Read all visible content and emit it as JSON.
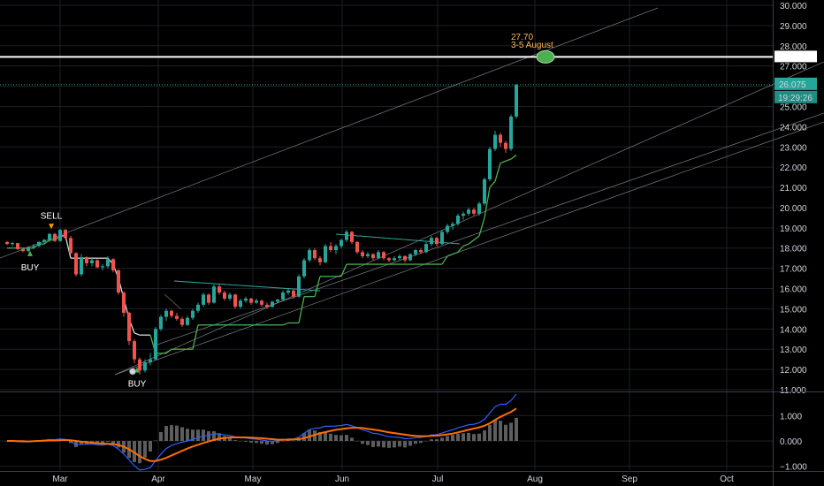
{
  "chart_data": [
    {
      "type": "candlestick",
      "title": "",
      "xlabel": "",
      "ylabel": "",
      "ylim": [
        11,
        30
      ],
      "y_ticks": [
        "30.000",
        "29.000",
        "28.000",
        "27.000",
        "26.000",
        "25.000",
        "24.000",
        "23.000",
        "22.000",
        "21.000",
        "20.000",
        "19.000",
        "18.000",
        "17.000",
        "16.000",
        "15.000",
        "14.000",
        "13.000",
        "12.000",
        "11.000"
      ],
      "x_ticks": [
        "Mar",
        "Apr",
        "May",
        "Jun",
        "Jul",
        "Aug",
        "Sep",
        "Oct"
      ],
      "grid": true,
      "last_price": "26.075",
      "countdown": "19:29:26",
      "horizontal_level": 27.45,
      "target": {
        "price_label": "27.70",
        "date_label": "3-5 August",
        "value": 27.45
      },
      "signals": [
        {
          "label": "SELL",
          "price": 18.85
        },
        {
          "label": "BUY",
          "price": 17.95
        },
        {
          "label": "BUY",
          "price": 12.2
        }
      ],
      "colors": {
        "up": "#26a69a",
        "down": "#ef5350",
        "trail": "#4caf50",
        "trail_bear": "#d8d8d8",
        "level": "#ffffff",
        "last_price_tag": "#26a69a"
      },
      "candles": [
        [
          18.3,
          18.35,
          18.15,
          18.2
        ],
        [
          18.2,
          18.3,
          18.1,
          18.25
        ],
        [
          18.25,
          18.25,
          17.9,
          17.95
        ],
        [
          17.95,
          18.0,
          17.8,
          17.85
        ],
        [
          17.85,
          18.1,
          17.8,
          18.05
        ],
        [
          18.05,
          18.2,
          17.95,
          18.1
        ],
        [
          18.1,
          18.35,
          18.05,
          18.3
        ],
        [
          18.3,
          18.45,
          18.2,
          18.4
        ],
        [
          18.4,
          18.75,
          18.3,
          18.7
        ],
        [
          18.7,
          18.75,
          18.3,
          18.35
        ],
        [
          18.35,
          18.95,
          18.3,
          18.9
        ],
        [
          18.9,
          18.95,
          18.45,
          18.5
        ],
        [
          18.5,
          18.6,
          17.7,
          17.75
        ],
        [
          17.75,
          17.8,
          16.6,
          16.7
        ],
        [
          16.7,
          17.7,
          16.6,
          17.55
        ],
        [
          17.55,
          17.6,
          17.1,
          17.25
        ],
        [
          17.25,
          17.5,
          17.1,
          17.4
        ],
        [
          17.4,
          17.45,
          17.0,
          17.05
        ],
        [
          17.05,
          17.2,
          16.9,
          17.1
        ],
        [
          17.1,
          17.6,
          17.0,
          17.45
        ],
        [
          17.45,
          17.5,
          16.8,
          16.9
        ],
        [
          16.9,
          16.95,
          15.7,
          15.8
        ],
        [
          15.8,
          15.85,
          14.6,
          14.8
        ],
        [
          14.8,
          14.85,
          13.2,
          13.4
        ],
        [
          13.4,
          13.5,
          12.3,
          12.5
        ],
        [
          12.5,
          12.6,
          11.75,
          11.95
        ],
        [
          11.95,
          12.5,
          11.85,
          12.35
        ],
        [
          12.35,
          12.8,
          12.2,
          12.5
        ],
        [
          12.5,
          14.1,
          12.45,
          14.0
        ],
        [
          14.0,
          14.7,
          13.9,
          14.6
        ],
        [
          14.6,
          15.0,
          14.4,
          14.9
        ],
        [
          14.9,
          14.95,
          14.55,
          14.65
        ],
        [
          14.65,
          14.8,
          14.4,
          14.5
        ],
        [
          14.5,
          14.6,
          14.1,
          14.2
        ],
        [
          14.2,
          14.65,
          14.15,
          14.55
        ],
        [
          14.55,
          15.0,
          14.45,
          14.9
        ],
        [
          14.9,
          15.3,
          14.8,
          15.2
        ],
        [
          15.2,
          15.8,
          15.1,
          15.7
        ],
        [
          15.7,
          15.75,
          15.2,
          15.3
        ],
        [
          15.3,
          16.2,
          15.25,
          16.1
        ],
        [
          16.1,
          16.2,
          15.7,
          15.8
        ],
        [
          15.8,
          15.9,
          15.4,
          15.5
        ],
        [
          15.5,
          15.8,
          15.4,
          15.7
        ],
        [
          15.7,
          15.75,
          15.0,
          15.1
        ],
        [
          15.1,
          15.5,
          15.0,
          15.4
        ],
        [
          15.4,
          15.6,
          15.3,
          15.5
        ],
        [
          15.5,
          15.55,
          15.2,
          15.3
        ],
        [
          15.3,
          15.5,
          15.25,
          15.4
        ],
        [
          15.4,
          15.45,
          15.1,
          15.2
        ],
        [
          15.2,
          15.3,
          15.0,
          15.1
        ],
        [
          15.1,
          15.4,
          15.05,
          15.35
        ],
        [
          15.35,
          15.5,
          15.3,
          15.45
        ],
        [
          15.45,
          15.9,
          15.4,
          15.8
        ],
        [
          15.8,
          16.0,
          15.7,
          15.9
        ],
        [
          15.9,
          15.95,
          15.5,
          15.6
        ],
        [
          15.6,
          16.7,
          15.55,
          16.6
        ],
        [
          16.6,
          17.5,
          16.5,
          17.4
        ],
        [
          17.4,
          18.0,
          17.3,
          17.9
        ],
        [
          17.9,
          18.0,
          17.4,
          17.5
        ],
        [
          17.5,
          17.6,
          17.15,
          17.3
        ],
        [
          17.3,
          18.2,
          17.25,
          18.1
        ],
        [
          18.1,
          18.3,
          17.8,
          17.9
        ],
        [
          17.9,
          18.2,
          17.7,
          18.1
        ],
        [
          18.1,
          18.45,
          18.0,
          18.4
        ],
        [
          18.4,
          18.9,
          18.3,
          18.8
        ],
        [
          18.8,
          18.85,
          18.2,
          18.3
        ],
        [
          18.3,
          18.35,
          17.7,
          17.8
        ],
        [
          17.8,
          17.9,
          17.5,
          17.6
        ],
        [
          17.6,
          17.8,
          17.5,
          17.7
        ],
        [
          17.7,
          17.75,
          17.4,
          17.5
        ],
        [
          17.5,
          17.9,
          17.45,
          17.8
        ],
        [
          17.8,
          17.85,
          17.4,
          17.5
        ],
        [
          17.5,
          17.55,
          17.3,
          17.4
        ],
        [
          17.4,
          17.6,
          17.35,
          17.5
        ],
        [
          17.5,
          17.7,
          17.4,
          17.6
        ],
        [
          17.6,
          17.65,
          17.3,
          17.4
        ],
        [
          17.4,
          17.75,
          17.35,
          17.7
        ],
        [
          17.7,
          17.95,
          17.6,
          17.9
        ],
        [
          17.9,
          18.0,
          17.7,
          17.8
        ],
        [
          17.8,
          18.3,
          17.75,
          18.2
        ],
        [
          18.2,
          18.6,
          18.1,
          18.5
        ],
        [
          18.5,
          18.55,
          18.1,
          18.2
        ],
        [
          18.2,
          18.9,
          18.15,
          18.8
        ],
        [
          18.8,
          19.2,
          18.7,
          19.1
        ],
        [
          19.1,
          19.3,
          18.9,
          19.2
        ],
        [
          19.2,
          19.7,
          19.1,
          19.6
        ],
        [
          19.6,
          19.8,
          19.4,
          19.7
        ],
        [
          19.7,
          20.0,
          19.6,
          19.9
        ],
        [
          19.9,
          20.0,
          19.6,
          19.7
        ],
        [
          19.7,
          20.3,
          19.6,
          20.2
        ],
        [
          20.2,
          21.5,
          20.1,
          21.4
        ],
        [
          21.4,
          23.0,
          21.3,
          22.9
        ],
        [
          22.9,
          23.8,
          22.8,
          23.6
        ],
        [
          23.6,
          23.7,
          23.0,
          23.2
        ],
        [
          23.2,
          23.3,
          22.7,
          22.9
        ],
        [
          22.9,
          24.6,
          22.8,
          24.5
        ],
        [
          24.5,
          26.1,
          24.4,
          26.075
        ]
      ],
      "trailing_stop": [
        18.0,
        18.0,
        18.0,
        18.0,
        18.0,
        18.0,
        18.2,
        18.2,
        18.4,
        18.4,
        18.6,
        18.6,
        17.5,
        17.5,
        17.5,
        17.5,
        17.5,
        17.5,
        17.5,
        17.5,
        17.2,
        16.5,
        15.5,
        14.5,
        13.8,
        13.7,
        13.7,
        13.7,
        12.8,
        12.8,
        12.8,
        13.0,
        13.0,
        13.0,
        13.0,
        13.0,
        14.2,
        14.2,
        14.2,
        14.2,
        14.2,
        14.2,
        14.2,
        14.2,
        14.2,
        14.2,
        14.2,
        14.2,
        14.2,
        14.2,
        14.2,
        14.2,
        14.2,
        14.3,
        14.3,
        14.3,
        15.6,
        15.6,
        15.6,
        16.6,
        16.6,
        16.6,
        16.6,
        16.6,
        17.2,
        17.2,
        17.2,
        17.2,
        17.2,
        17.2,
        17.2,
        17.2,
        17.2,
        17.2,
        17.2,
        17.2,
        17.2,
        17.2,
        17.2,
        17.2,
        17.2,
        17.2,
        17.2,
        17.6,
        17.7,
        17.8,
        18.1,
        18.2,
        18.4,
        18.6,
        19.5,
        21.0,
        21.3,
        22.2,
        22.3,
        22.4,
        22.6
      ],
      "trail_bearish_from": 11,
      "trail_bearish_to": 27
    },
    {
      "type": "macd",
      "ylim": [
        -1.15,
        1.85
      ],
      "y_ticks": [
        "1.000",
        "0.000",
        "−1.000"
      ],
      "macd_color": "#2962ff",
      "signal_color": "#ff6d00",
      "hist_color": "#5d5d5d",
      "macd": [
        0.0,
        0.0,
        -0.02,
        -0.04,
        -0.03,
        -0.01,
        0.01,
        0.03,
        0.06,
        0.05,
        0.08,
        0.06,
        -0.02,
        -0.15,
        -0.13,
        -0.13,
        -0.12,
        -0.15,
        -0.16,
        -0.13,
        -0.18,
        -0.32,
        -0.52,
        -0.75,
        -0.98,
        -1.15,
        -1.12,
        -1.05,
        -0.78,
        -0.52,
        -0.3,
        -0.18,
        -0.1,
        -0.05,
        0.0,
        0.06,
        0.13,
        0.2,
        0.22,
        0.28,
        0.28,
        0.24,
        0.22,
        0.16,
        0.14,
        0.12,
        0.09,
        0.07,
        0.04,
        0.0,
        -0.01,
        0.0,
        0.04,
        0.08,
        0.07,
        0.15,
        0.3,
        0.45,
        0.5,
        0.52,
        0.58,
        0.58,
        0.59,
        0.61,
        0.65,
        0.6,
        0.52,
        0.44,
        0.38,
        0.3,
        0.28,
        0.22,
        0.17,
        0.15,
        0.14,
        0.09,
        0.1,
        0.13,
        0.14,
        0.18,
        0.24,
        0.25,
        0.31,
        0.38,
        0.44,
        0.52,
        0.58,
        0.64,
        0.66,
        0.72,
        0.86,
        1.1,
        1.35,
        1.45,
        1.45,
        1.6,
        1.85
      ],
      "signal": [
        0.0,
        0.0,
        -0.01,
        -0.01,
        -0.02,
        -0.01,
        0.0,
        0.01,
        0.02,
        0.02,
        0.03,
        0.04,
        0.03,
        0.0,
        -0.03,
        -0.05,
        -0.07,
        -0.09,
        -0.1,
        -0.11,
        -0.12,
        -0.16,
        -0.23,
        -0.33,
        -0.46,
        -0.6,
        -0.71,
        -0.79,
        -0.79,
        -0.74,
        -0.67,
        -0.57,
        -0.48,
        -0.39,
        -0.3,
        -0.22,
        -0.15,
        -0.08,
        -0.02,
        0.04,
        0.09,
        0.12,
        0.14,
        0.14,
        0.14,
        0.14,
        0.13,
        0.12,
        0.11,
        0.09,
        0.07,
        0.05,
        0.05,
        0.05,
        0.06,
        0.07,
        0.11,
        0.18,
        0.24,
        0.3,
        0.35,
        0.4,
        0.44,
        0.47,
        0.5,
        0.52,
        0.52,
        0.51,
        0.48,
        0.45,
        0.42,
        0.38,
        0.34,
        0.31,
        0.28,
        0.25,
        0.22,
        0.2,
        0.19,
        0.19,
        0.2,
        0.21,
        0.23,
        0.26,
        0.29,
        0.34,
        0.39,
        0.44,
        0.49,
        0.54,
        0.6,
        0.7,
        0.83,
        0.95,
        1.05,
        1.15,
        1.28
      ]
    }
  ]
}
